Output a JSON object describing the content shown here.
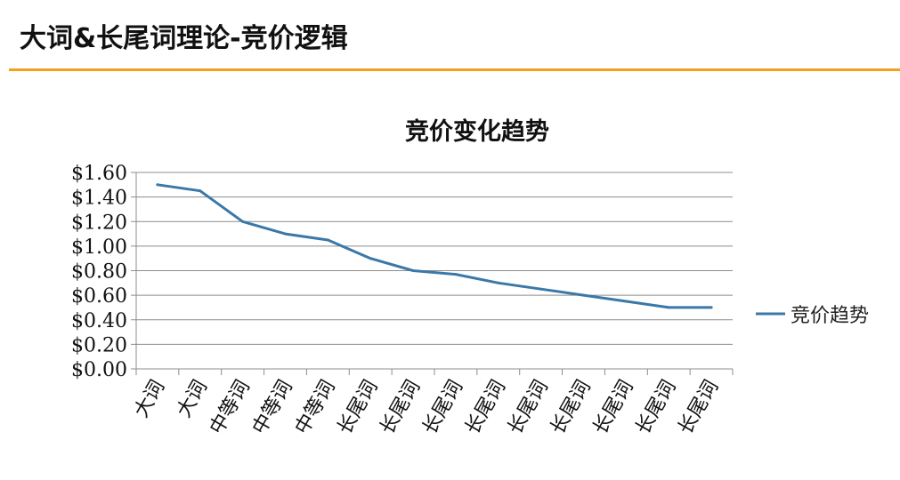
{
  "slide": {
    "title": "大词&长尾词理论-竞价逻辑",
    "accent_color": "#f2a11f"
  },
  "chart_data": {
    "type": "line",
    "title": "竞价变化趋势",
    "xlabel": "",
    "ylabel": "",
    "categories": [
      "大词",
      "大词",
      "中等词",
      "中等词",
      "中等词",
      "长尾词",
      "长尾词",
      "长尾词",
      "长尾词",
      "长尾词",
      "长尾词",
      "长尾词",
      "长尾词",
      "长尾词"
    ],
    "series": [
      {
        "name": "竞价趋势",
        "color": "#3a78a8",
        "values": [
          1.5,
          1.45,
          1.2,
          1.1,
          1.05,
          0.9,
          0.8,
          0.77,
          0.7,
          0.65,
          0.6,
          0.55,
          0.5,
          0.5
        ]
      }
    ],
    "ylim": [
      0,
      1.6
    ],
    "yticks": [
      0.0,
      0.2,
      0.4,
      0.6,
      0.8,
      1.0,
      1.2,
      1.4,
      1.6
    ],
    "ytick_labels": [
      "$0.00",
      "$0.20",
      "$0.40",
      "$0.60",
      "$0.80",
      "$1.00",
      "$1.20",
      "$1.40",
      "$1.60"
    ],
    "grid": true,
    "legend": "right"
  }
}
